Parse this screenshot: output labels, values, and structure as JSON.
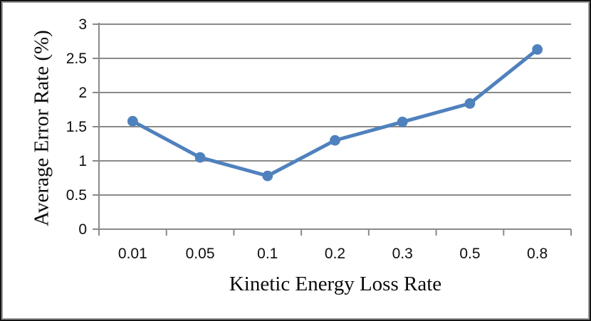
{
  "chart_data": {
    "type": "line",
    "categories": [
      "0.01",
      "0.05",
      "0.1",
      "0.2",
      "0.3",
      "0.5",
      "0.8"
    ],
    "values": [
      1.58,
      1.05,
      0.78,
      1.3,
      1.57,
      1.84,
      2.63
    ],
    "series": [
      {
        "name": "Average Error Rate",
        "values": [
          1.58,
          1.05,
          0.78,
          1.3,
          1.57,
          1.84,
          2.63
        ]
      }
    ],
    "title": "",
    "xlabel": "Kinetic Energy Loss Rate",
    "ylabel": "Average Error Rate (%)",
    "ylim": [
      0,
      3
    ],
    "yticks": [
      "0",
      "0.5",
      "1",
      "1.5",
      "2",
      "2.5",
      "3"
    ],
    "ytick_values": [
      0,
      0.5,
      1,
      1.5,
      2,
      2.5,
      3
    ],
    "grid": "horizontal",
    "legend_position": "none",
    "marker": "circle"
  },
  "colors": {
    "series": "#4f81bd",
    "gridline": "#8a8a8a",
    "axis": "#8a8a8a",
    "text": "#0d0d0d",
    "background": "#ffffff",
    "frame_border": "#141414"
  }
}
